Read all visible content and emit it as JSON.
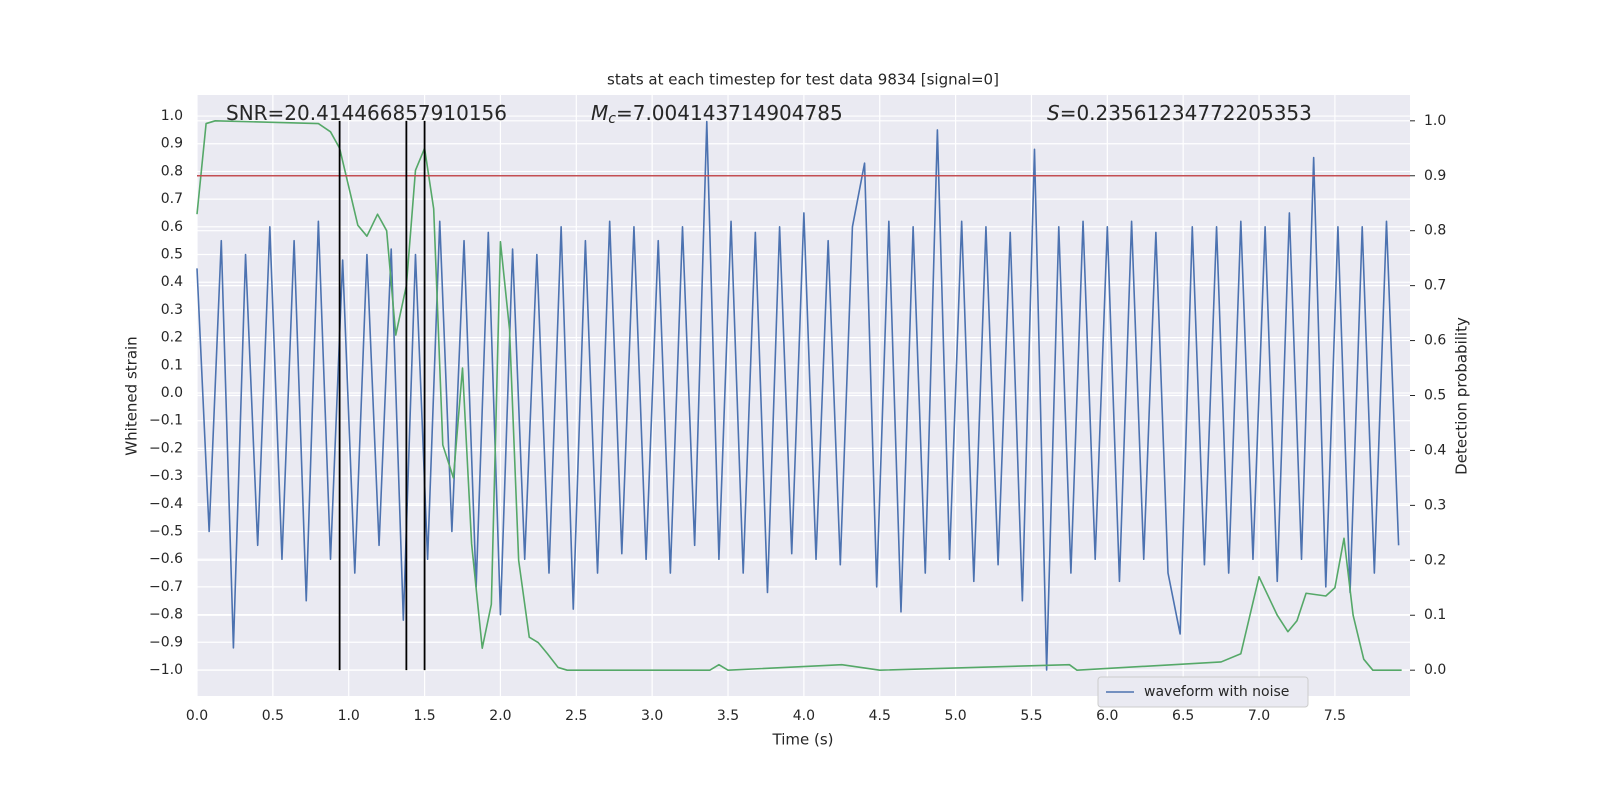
{
  "chart_data": {
    "type": "line",
    "title": "stats at each timestep for test data 9834 [signal=0]",
    "x_label": "Time (s)",
    "y_label": "Whitened strain",
    "y2_label": "Detection probability",
    "annotations": [
      {
        "text": "SNR=20.414466857910156"
      },
      {
        "symbol": "M",
        "subscript": "c",
        "text": "=7.004143714904785"
      },
      {
        "symbol": "S",
        "text": "=0.23561234772205353"
      }
    ],
    "xlim": [
      0,
      7.995
    ],
    "ylim": [
      -1.094,
      1.076
    ],
    "y2lim": [
      -0.047,
      1.047
    ],
    "xticks": [
      {
        "value": 0,
        "label": "0.0"
      },
      0.5,
      {
        "value": 1,
        "label": "1.0"
      },
      1.5,
      {
        "value": 2,
        "label": "2.0"
      },
      2.5,
      {
        "value": 3,
        "label": "3.0"
      },
      3.5,
      {
        "value": 4,
        "label": "4.0"
      },
      4.5,
      {
        "value": 5,
        "label": "5.0"
      },
      5.5,
      {
        "value": 6,
        "label": "6.0"
      },
      6.5,
      {
        "value": 7,
        "label": "7.0"
      },
      7.5
    ],
    "yticks": [
      {
        "value": -1,
        "label": "−1.0"
      },
      {
        "value": -0.9,
        "label": "−0.9"
      },
      {
        "value": -0.8,
        "label": "−0.8"
      },
      {
        "value": -0.7,
        "label": "−0.7"
      },
      {
        "value": -0.6,
        "label": "−0.6"
      },
      {
        "value": -0.5,
        "label": "−0.5"
      },
      {
        "value": -0.4,
        "label": "−0.4"
      },
      {
        "value": -0.3,
        "label": "−0.3"
      },
      {
        "value": -0.2,
        "label": "−0.2"
      },
      {
        "value": -0.1,
        "label": "−0.1"
      },
      {
        "value": 0,
        "label": "0.0"
      },
      0.1,
      0.2,
      0.3,
      0.4,
      0.5,
      0.6,
      0.7,
      0.8,
      0.9,
      {
        "value": 1,
        "label": "1.0"
      }
    ],
    "y2ticks": [
      {
        "value": 0,
        "label": "0.0"
      },
      0.1,
      0.2,
      0.3,
      0.4,
      0.5,
      0.6,
      0.7,
      0.8,
      0.9,
      {
        "value": 1,
        "label": "1.0"
      }
    ],
    "grid": true,
    "legend": "lower right",
    "series": [
      {
        "name": "waveform with noise",
        "color": "#4c72b0",
        "x": [
          0,
          0.08,
          0.16,
          0.24,
          0.32,
          0.4,
          0.48,
          0.56,
          0.64,
          0.72,
          0.8,
          0.88,
          0.96,
          1.04,
          1.12,
          1.2,
          1.28,
          1.36,
          1.44,
          1.52,
          1.6,
          1.68,
          1.76,
          1.84,
          1.92,
          2,
          2.08,
          2.16,
          2.24,
          2.32,
          2.4,
          2.48,
          2.56,
          2.64,
          2.72,
          2.8,
          2.88,
          2.96,
          3.04,
          3.12,
          3.2,
          3.28,
          3.36,
          3.44,
          3.52,
          3.6,
          3.68,
          3.76,
          3.84,
          3.92,
          4,
          4.08,
          4.16,
          4.24,
          4.32,
          4.4,
          4.48,
          4.56,
          4.64,
          4.72,
          4.8,
          4.88,
          4.96,
          5.04,
          5.12,
          5.2,
          5.28,
          5.36,
          5.44,
          5.52,
          5.6,
          5.68,
          5.76,
          5.84,
          5.92,
          6,
          6.08,
          6.16,
          6.24,
          6.32,
          6.4,
          6.48,
          6.56,
          6.64,
          6.72,
          6.8,
          6.88,
          6.96,
          7.04,
          7.12,
          7.2,
          7.28,
          7.36,
          7.44,
          7.52,
          7.6,
          7.68,
          7.76,
          7.84,
          7.92
        ],
        "values": [
          0.45,
          -0.5,
          0.55,
          -0.92,
          0.5,
          -0.55,
          0.6,
          -0.6,
          0.55,
          -0.75,
          0.62,
          -0.6,
          0.48,
          -0.65,
          0.5,
          -0.55,
          0.52,
          -0.82,
          0.5,
          -0.6,
          0.62,
          -0.5,
          0.55,
          -0.7,
          0.58,
          -0.8,
          0.52,
          -0.6,
          0.5,
          -0.65,
          0.6,
          -0.78,
          0.55,
          -0.65,
          0.62,
          -0.58,
          0.6,
          -0.6,
          0.55,
          -0.65,
          0.6,
          -0.55,
          0.98,
          -0.6,
          0.62,
          -0.65,
          0.58,
          -0.72,
          0.6,
          -0.58,
          0.65,
          -0.6,
          0.55,
          -0.62,
          0.6,
          0.83,
          -0.7,
          0.62,
          -0.79,
          0.6,
          -0.65,
          0.95,
          -0.6,
          0.62,
          -0.68,
          0.6,
          -0.62,
          0.58,
          -0.75,
          0.88,
          -1.0,
          0.6,
          -0.65,
          0.62,
          -0.6,
          0.6,
          -0.68,
          0.62,
          -0.6,
          0.58,
          -0.65,
          -0.87,
          0.6,
          -0.62,
          0.6,
          -0.65,
          0.62,
          -0.6,
          0.6,
          -0.68,
          0.65,
          -0.6,
          0.85,
          -0.7,
          0.6,
          -0.72,
          0.6,
          -0.65,
          0.62,
          -0.55
        ]
      },
      {
        "color": "#55a868",
        "axis": "y2",
        "x": [
          0,
          0.06,
          0.12,
          0.8,
          0.88,
          0.94,
          1,
          1.06,
          1.12,
          1.19,
          1.25,
          1.31,
          1.38,
          1.44,
          1.5,
          1.56,
          1.62,
          1.69,
          1.75,
          1.81,
          1.88,
          1.94,
          2,
          2.06,
          2.12,
          2.19,
          2.25,
          2.31,
          2.38,
          2.44,
          3.25,
          3.38,
          3.44,
          3.5,
          4.25,
          4.5,
          5.75,
          5.8,
          6.75,
          6.88,
          7,
          7.12,
          7.19,
          7.25,
          7.31,
          7.44,
          7.5,
          7.56,
          7.62,
          7.69,
          7.75,
          7.94
        ],
        "values": [
          0.83,
          0.995,
          1.0,
          0.995,
          0.98,
          0.95,
          0.88,
          0.81,
          0.79,
          0.83,
          0.8,
          0.61,
          0.7,
          0.91,
          0.95,
          0.84,
          0.41,
          0.35,
          0.55,
          0.23,
          0.04,
          0.12,
          0.78,
          0.62,
          0.2,
          0.06,
          0.05,
          0.03,
          0.005,
          0.0,
          0.0,
          0.0,
          0.01,
          0.0,
          0.01,
          0.0,
          0.01,
          0.0,
          0.015,
          0.03,
          0.17,
          0.1,
          0.07,
          0.09,
          0.14,
          0.135,
          0.15,
          0.24,
          0.1,
          0.02,
          0.0,
          0.0
        ]
      }
    ],
    "hline": {
      "value": 0.9,
      "axis": "y2",
      "color": "#c44e52"
    },
    "vlines": {
      "x": [
        0.94,
        1.38,
        1.5
      ],
      "range": [
        0,
        1
      ],
      "axis": "y2",
      "color": "#000000"
    }
  }
}
